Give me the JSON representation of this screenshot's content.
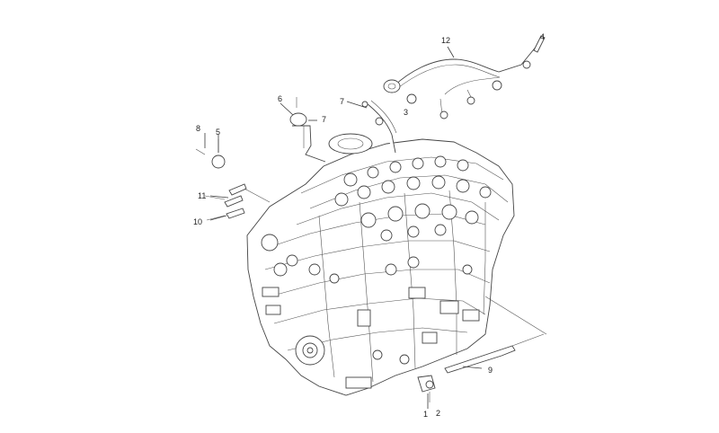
{
  "diagram": {
    "callouts": [
      {
        "id": "c1",
        "text": "1"
      },
      {
        "id": "c2",
        "text": "2"
      },
      {
        "id": "c3",
        "text": "3"
      },
      {
        "id": "c4",
        "text": "4"
      },
      {
        "id": "c5",
        "text": "5"
      },
      {
        "id": "c6",
        "text": "6"
      },
      {
        "id": "c7",
        "text": "7"
      },
      {
        "id": "c8",
        "text": "8"
      },
      {
        "id": "c9",
        "text": "9"
      },
      {
        "id": "c10",
        "text": "10"
      },
      {
        "id": "c11",
        "text": "11"
      },
      {
        "id": "c12",
        "text": "12"
      }
    ]
  }
}
